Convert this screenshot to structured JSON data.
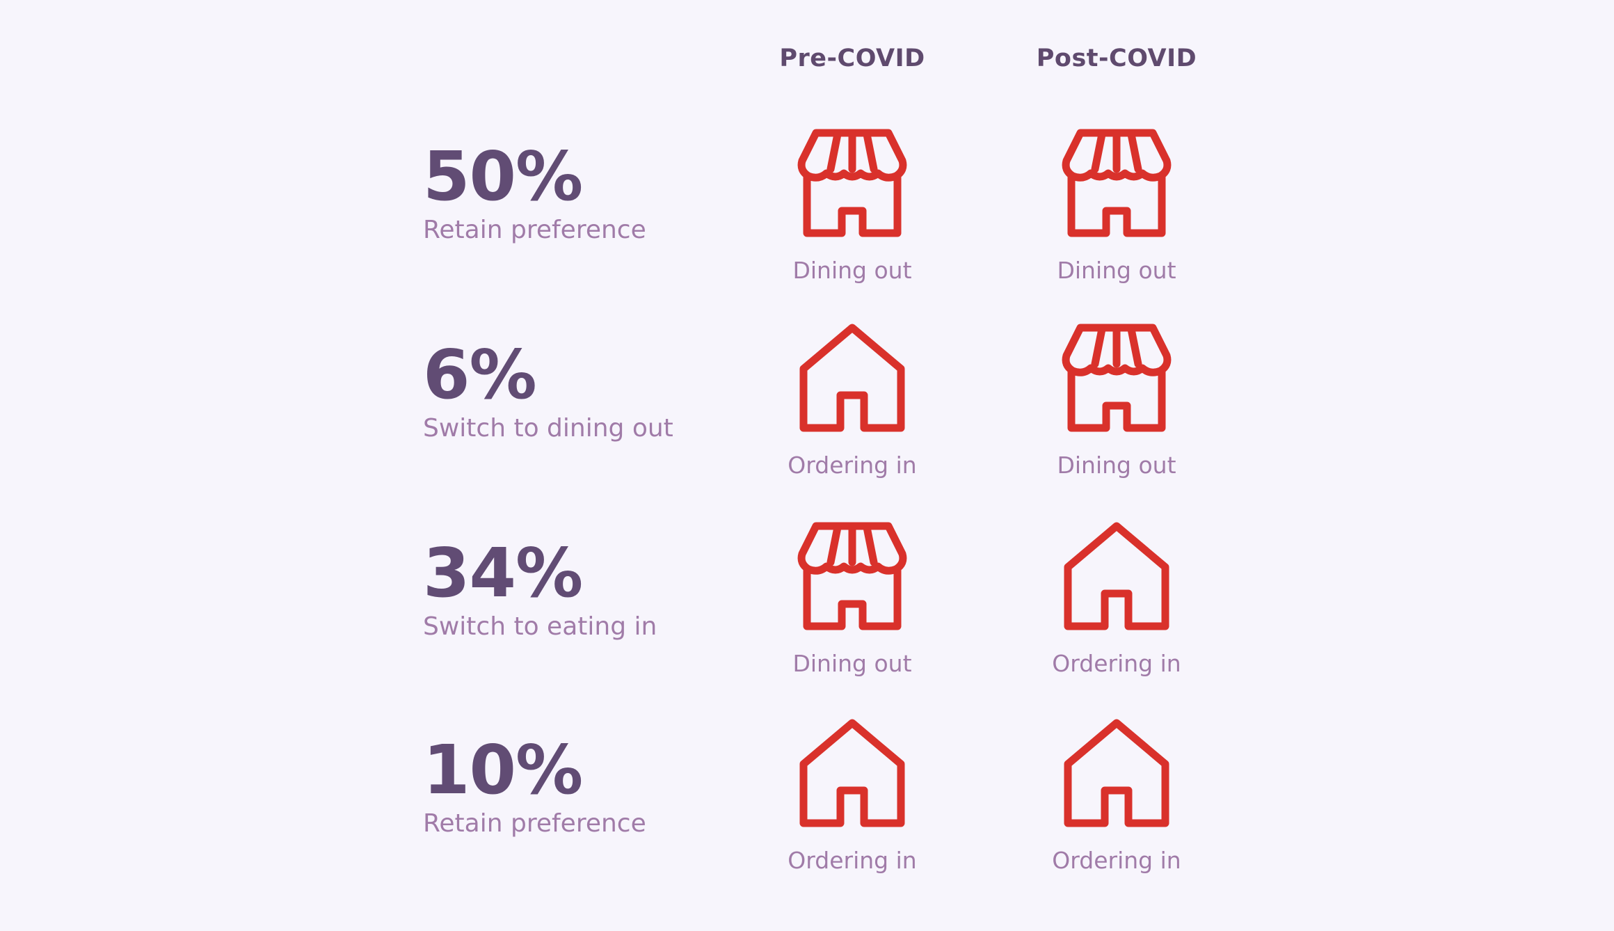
{
  "header": {
    "pre_label": "Pre-COVID",
    "post_label": "Post-COVID"
  },
  "rows": [
    {
      "stat": "50%",
      "description": "Retain preference",
      "pre": {
        "icon": "storefront-icon",
        "label": "Dining out"
      },
      "post": {
        "icon": "storefront-icon",
        "label": "Dining out"
      }
    },
    {
      "stat": "6%",
      "description": "Switch to dining out",
      "pre": {
        "icon": "house-icon",
        "label": "Ordering in"
      },
      "post": {
        "icon": "storefront-icon",
        "label": "Dining out"
      }
    },
    {
      "stat": "34%",
      "description": "Switch to eating in",
      "pre": {
        "icon": "storefront-icon",
        "label": "Dining out"
      },
      "post": {
        "icon": "house-icon",
        "label": "Ordering in"
      }
    },
    {
      "stat": "10%",
      "description": "Retain preference",
      "pre": {
        "icon": "house-icon",
        "label": "Ordering in"
      },
      "post": {
        "icon": "house-icon",
        "label": "Ordering in"
      }
    }
  ],
  "colors": {
    "icon": "#d9312b",
    "stat": "#614c74",
    "description": "#a07ba8",
    "header": "#5f4a6e",
    "background": "#f7f5fc"
  }
}
